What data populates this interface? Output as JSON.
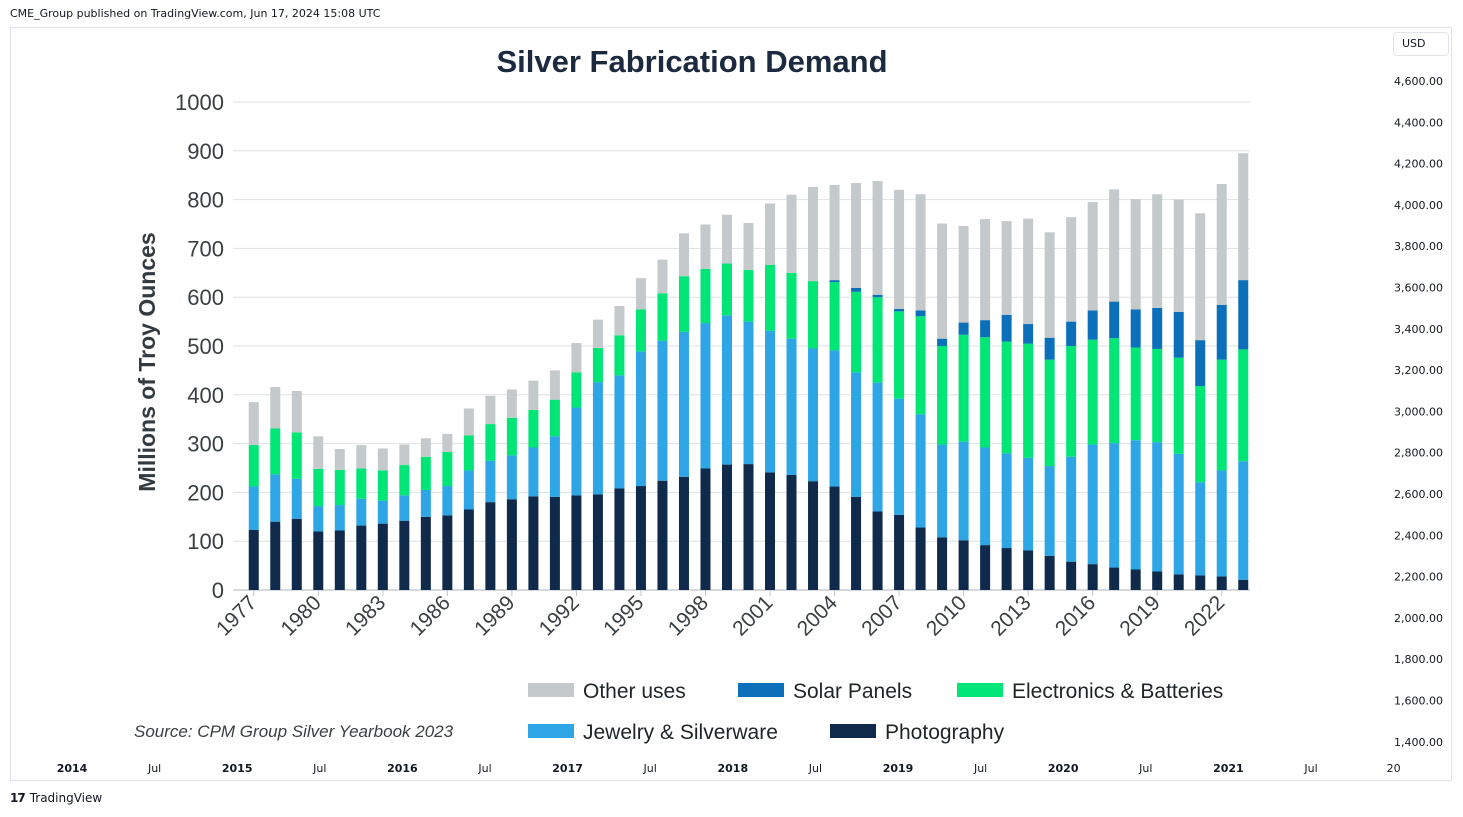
{
  "header": {
    "publisher_text": "CME_Group published on TradingView.com, Jun 17, 2024 15:08 UTC"
  },
  "currency_button": {
    "label": "USD"
  },
  "footer": {
    "brand": "TradingView",
    "logo_glyph": "17"
  },
  "right_axis": {
    "labels": [
      "4,600.00",
      "4,400.00",
      "4,200.00",
      "4,000.00",
      "3,800.00",
      "3,600.00",
      "3,400.00",
      "3,200.00",
      "3,000.00",
      "2,800.00",
      "2,600.00",
      "2,400.00",
      "2,200.00",
      "2,000.00",
      "1,800.00",
      "1,600.00",
      "1,400.00"
    ]
  },
  "time_axis": {
    "labels": [
      "2014",
      "Jul",
      "2015",
      "Jul",
      "2016",
      "Jul",
      "2017",
      "Jul",
      "2018",
      "Jul",
      "2019",
      "Jul",
      "2020",
      "Jul",
      "2021",
      "Jul",
      "20"
    ],
    "bold": [
      true,
      false,
      true,
      false,
      true,
      false,
      true,
      false,
      true,
      false,
      true,
      false,
      true,
      false,
      true,
      false,
      false
    ]
  },
  "chart_data": {
    "type": "bar",
    "stacked": true,
    "title": "Silver Fabrication Demand",
    "ylabel": "Millions of Troy Ounces",
    "xlabel": "",
    "ylim": [
      0,
      1000
    ],
    "y_ticks": [
      "1000",
      "900",
      "800",
      "700",
      "600",
      "500",
      "400",
      "300",
      "200",
      "100",
      "0"
    ],
    "x_tick_labels": [
      "1977",
      "1980",
      "1983",
      "1986",
      "1989",
      "1992",
      "1995",
      "1998",
      "2001",
      "2004",
      "2007",
      "2010",
      "2013",
      "2016",
      "2019",
      "2022"
    ],
    "source": "Source: CPM Group Silver Yearbook 2023",
    "categories": [
      "1977",
      "1978",
      "1979",
      "1980",
      "1981",
      "1982",
      "1983",
      "1984",
      "1985",
      "1986",
      "1987",
      "1988",
      "1989",
      "1990",
      "1991",
      "1992",
      "1993",
      "1994",
      "1995",
      "1996",
      "1997",
      "1998",
      "1999",
      "2000",
      "2001",
      "2002",
      "2003",
      "2004",
      "2005",
      "2006",
      "2007",
      "2008",
      "2009",
      "2010",
      "2011",
      "2012",
      "2013",
      "2014",
      "2015",
      "2016",
      "2017",
      "2018",
      "2019",
      "2020",
      "2021",
      "2022",
      "2023"
    ],
    "series": [
      {
        "name": "Photography",
        "color": "#0f2a4a",
        "values": [
          123,
          140,
          146,
          120,
          122,
          132,
          136,
          142,
          150,
          153,
          165,
          180,
          186,
          192,
          191,
          194,
          196,
          208,
          213,
          224,
          232,
          249,
          257,
          258,
          241,
          236,
          223,
          212,
          191,
          161,
          154,
          128,
          108,
          102,
          92,
          86,
          81,
          70,
          58,
          53,
          46,
          42,
          38,
          32,
          30,
          28,
          21
        ]
      },
      {
        "name": "Jewelry & Silverware",
        "color": "#2ea6e6",
        "values": [
          89,
          97,
          82,
          52,
          52,
          55,
          47,
          52,
          55,
          60,
          80,
          85,
          90,
          100,
          124,
          180,
          230,
          232,
          276,
          287,
          297,
          298,
          306,
          292,
          290,
          279,
          272,
          279,
          255,
          264,
          238,
          232,
          190,
          202,
          200,
          194,
          190,
          184,
          215,
          245,
          255,
          265,
          265,
          247,
          191,
          217,
          243
        ]
      },
      {
        "name": "Electronics & Batteries",
        "color": "#00e676",
        "values": [
          85,
          94,
          95,
          76,
          72,
          62,
          62,
          62,
          68,
          70,
          72,
          75,
          77,
          77,
          75,
          72,
          70,
          82,
          86,
          97,
          114,
          111,
          106,
          106,
          135,
          135,
          138,
          140,
          165,
          175,
          179,
          201,
          202,
          219,
          226,
          229,
          234,
          218,
          227,
          215,
          215,
          190,
          191,
          197,
          197,
          227,
          229
        ]
      },
      {
        "name": "Solar Panels",
        "color": "#0b6fba",
        "values": [
          0,
          0,
          0,
          0,
          0,
          0,
          0,
          0,
          0,
          0,
          0,
          0,
          0,
          0,
          0,
          0,
          0,
          0,
          0,
          0,
          0,
          0,
          0,
          0,
          0,
          0,
          0,
          4,
          8,
          5,
          5,
          12,
          15,
          25,
          35,
          55,
          40,
          45,
          50,
          60,
          75,
          78,
          84,
          94,
          94,
          112,
          142
        ]
      },
      {
        "name": "Other uses",
        "color": "#c4c9cc",
        "values": [
          88,
          85,
          85,
          67,
          43,
          48,
          45,
          42,
          38,
          37,
          55,
          58,
          58,
          60,
          60,
          60,
          58,
          60,
          64,
          69,
          88,
          91,
          100,
          96,
          126,
          160,
          193,
          195,
          215,
          233,
          244,
          238,
          236,
          198,
          207,
          192,
          216,
          216,
          214,
          222,
          230,
          226,
          233,
          230,
          260,
          248,
          260
        ]
      }
    ],
    "legend": [
      {
        "name": "Other uses",
        "color": "#c4c9cc"
      },
      {
        "name": "Solar Panels",
        "color": "#0b6fba"
      },
      {
        "name": "Electronics & Batteries",
        "color": "#00e676"
      },
      {
        "name": "Jewelry & Silverware",
        "color": "#2ea6e6"
      },
      {
        "name": "Photography",
        "color": "#0f2a4a"
      }
    ],
    "legend_position": "bottom-right"
  }
}
